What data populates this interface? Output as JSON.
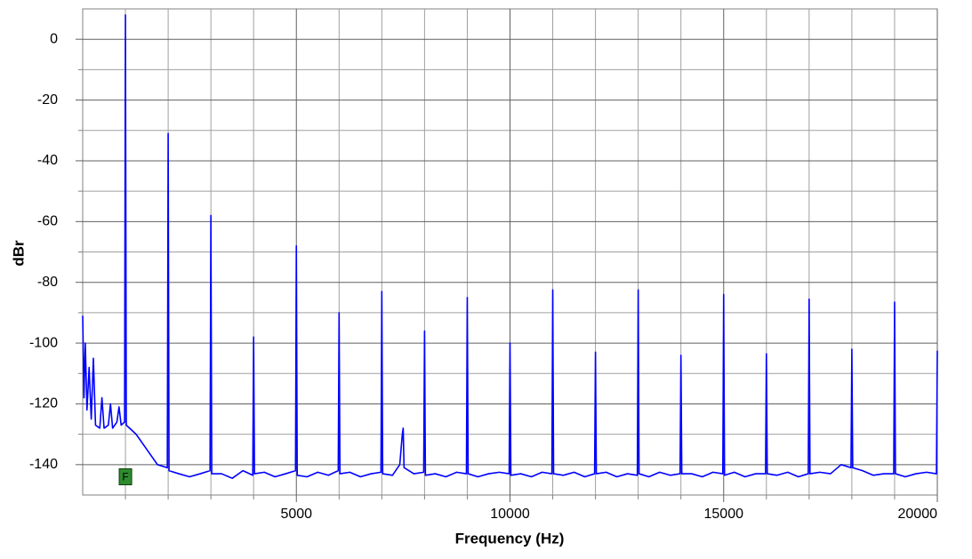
{
  "chart_data": {
    "type": "line",
    "xlabel": "Frequency (Hz)",
    "ylabel": "dBr",
    "color": "#0000ff",
    "xlim": [
      0,
      20000
    ],
    "ylim": [
      -150,
      10
    ],
    "xticks": [
      5000,
      10000,
      15000,
      20000
    ],
    "yticks": [
      0,
      -20,
      -40,
      -60,
      -80,
      -100,
      -120,
      -140
    ],
    "xminorticks": [
      1000,
      2000,
      3000,
      4000,
      6000,
      7000,
      8000,
      9000,
      11000,
      12000,
      13000,
      14000,
      16000,
      17000,
      18000,
      19000
    ],
    "yminorticks": [
      -10,
      -30,
      -50,
      -70,
      -90,
      -110,
      -130
    ],
    "grid": true,
    "annotations": [
      {
        "text": "F",
        "x": 1000,
        "y": -144
      }
    ],
    "x": [
      0,
      30,
      60,
      100,
      150,
      200,
      250,
      300,
      400,
      450,
      500,
      600,
      650,
      700,
      800,
      850,
      900,
      980,
      1000,
      1020,
      1250,
      1500,
      1750,
      1980,
      2000,
      2020,
      2250,
      2500,
      2750,
      2980,
      3000,
      3020,
      3250,
      3500,
      3750,
      3980,
      4000,
      4020,
      4250,
      4500,
      4750,
      4980,
      5000,
      5020,
      5250,
      5500,
      5750,
      5980,
      6000,
      6020,
      6250,
      6500,
      6750,
      6980,
      7000,
      7020,
      7250,
      7420,
      7450,
      7480,
      7500,
      7520,
      7750,
      7980,
      8000,
      8020,
      8250,
      8500,
      8750,
      8980,
      9000,
      9020,
      9250,
      9500,
      9750,
      9980,
      10000,
      10020,
      10250,
      10500,
      10750,
      10980,
      11000,
      11020,
      11250,
      11500,
      11750,
      11980,
      12000,
      12020,
      12250,
      12500,
      12750,
      12980,
      13000,
      13020,
      13250,
      13500,
      13750,
      13980,
      14000,
      14020,
      14250,
      14500,
      14750,
      14980,
      15000,
      15020,
      15250,
      15500,
      15750,
      15980,
      16000,
      16020,
      16250,
      16500,
      16750,
      16980,
      17000,
      17020,
      17250,
      17500,
      17750,
      17980,
      18000,
      18020,
      18250,
      18500,
      18750,
      18980,
      19000,
      19020,
      19250,
      19500,
      19750,
      19980,
      20000
    ],
    "values": [
      -91,
      -118,
      -100,
      -122,
      -108,
      -125,
      -105,
      -127,
      -128,
      -118,
      -128,
      -127,
      -120,
      -128,
      -126,
      -121,
      -127,
      -126,
      8,
      -127,
      -130,
      -135,
      -140,
      -141,
      -31,
      -142,
      -143,
      -144,
      -143,
      -142,
      -58,
      -143,
      -143,
      -144.5,
      -142,
      -143.5,
      -98,
      -143,
      -142.5,
      -144,
      -143,
      -142,
      -68,
      -143.5,
      -144,
      -142.5,
      -143.5,
      -142,
      -90,
      -143,
      -142.5,
      -144,
      -143,
      -142.5,
      -83,
      -143,
      -143.5,
      -140,
      -135,
      -130,
      -128,
      -141,
      -143,
      -142.5,
      -96,
      -143.5,
      -143,
      -144,
      -142.5,
      -143,
      -85,
      -143,
      -144,
      -143,
      -142.5,
      -143,
      -100,
      -143.5,
      -143,
      -144,
      -142.5,
      -143,
      -82.5,
      -143,
      -143.5,
      -142.5,
      -144,
      -143,
      -103,
      -143,
      -142.5,
      -144,
      -143,
      -143.5,
      -82.5,
      -143,
      -144,
      -142.5,
      -143.5,
      -143,
      -104,
      -143,
      -143,
      -144,
      -142.5,
      -143,
      -84,
      -143.5,
      -142.5,
      -144,
      -143,
      -143,
      -103.5,
      -143,
      -143.5,
      -142.5,
      -144,
      -143,
      -85.5,
      -143,
      -142.5,
      -143,
      -140,
      -141,
      -102,
      -141,
      -142,
      -143.5,
      -143,
      -143,
      -86.5,
      -143,
      -144,
      -143,
      -142.5,
      -143,
      -102.5
    ]
  }
}
